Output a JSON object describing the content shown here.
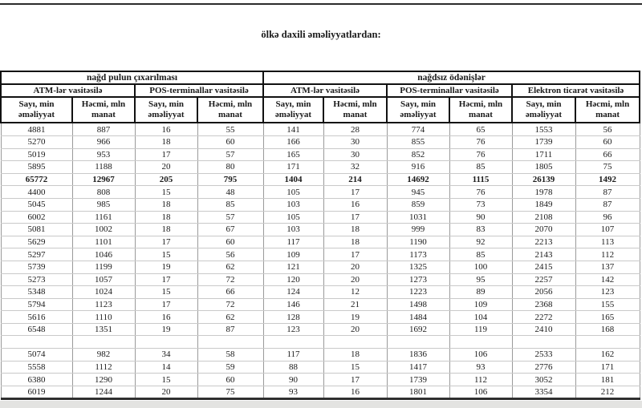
{
  "page": {
    "title": "ölkə daxili əməliyyatlardan:"
  },
  "table": {
    "groups": [
      {
        "label": "nağd pulun çıxarılması",
        "span": 4
      },
      {
        "label": "nağdsız ödənişlər",
        "span": 6
      }
    ],
    "subgroups": [
      {
        "label": "ATM-lər vasitəsilə",
        "span": 2
      },
      {
        "label": "POS-terminallar vasitəsilə",
        "span": 2
      },
      {
        "label": "ATM-lər vasitəsilə",
        "span": 2
      },
      {
        "label": "POS-terminallar vasitəsilə",
        "span": 2
      },
      {
        "label": "Elektron ticarət vasitəsilə",
        "span": 2
      }
    ],
    "header_cells": [
      "Sayı, min əməliyyat",
      "Həcmi, mln manat",
      "Sayı, min əməliyyat",
      "Həcmi, mln manat",
      "Sayı, min əməliyyat",
      "Həcmi, mln manat",
      "Sayı, min əməliyyat",
      "Həcmi, mln manat",
      "Sayı, min əməliyyat",
      "Həcmi, mln manat"
    ],
    "bold_row_index": 4,
    "rows": [
      [
        4881,
        887,
        16,
        55,
        141,
        28,
        774,
        65,
        1553,
        56
      ],
      [
        5270,
        966,
        18,
        60,
        166,
        30,
        855,
        76,
        1739,
        60
      ],
      [
        5019,
        953,
        17,
        57,
        165,
        30,
        852,
        76,
        1711,
        66
      ],
      [
        5895,
        1188,
        20,
        80,
        171,
        32,
        916,
        85,
        1805,
        75
      ],
      [
        65772,
        12967,
        205,
        795,
        1404,
        214,
        14692,
        1115,
        26139,
        1492
      ],
      [
        4400,
        808,
        15,
        48,
        105,
        17,
        945,
        76,
        1978,
        87
      ],
      [
        5045,
        985,
        18,
        85,
        103,
        16,
        859,
        73,
        1849,
        87
      ],
      [
        6002,
        1161,
        18,
        57,
        105,
        17,
        1031,
        90,
        2108,
        96
      ],
      [
        5081,
        1002,
        18,
        67,
        103,
        18,
        999,
        83,
        2070,
        107
      ],
      [
        5629,
        1101,
        17,
        60,
        117,
        18,
        1190,
        92,
        2213,
        113
      ],
      [
        5297,
        1046,
        15,
        56,
        109,
        17,
        1173,
        85,
        2143,
        112
      ],
      [
        5739,
        1199,
        19,
        62,
        121,
        20,
        1325,
        100,
        2415,
        137
      ],
      [
        5273,
        1057,
        17,
        72,
        120,
        20,
        1273,
        95,
        2257,
        142
      ],
      [
        5348,
        1024,
        15,
        66,
        124,
        12,
        1223,
        89,
        2056,
        123
      ],
      [
        5794,
        1123,
        17,
        72,
        146,
        21,
        1498,
        109,
        2368,
        155
      ],
      [
        5616,
        1110,
        16,
        62,
        128,
        19,
        1484,
        104,
        2272,
        165
      ],
      [
        6548,
        1351,
        19,
        87,
        123,
        20,
        1692,
        119,
        2410,
        168
      ],
      [
        "",
        "",
        "",
        "",
        "",
        "",
        "",
        "",
        "",
        ""
      ],
      [
        5074,
        982,
        34,
        58,
        117,
        18,
        1836,
        106,
        2533,
        162
      ],
      [
        5558,
        1112,
        14,
        59,
        88,
        15,
        1417,
        93,
        2776,
        171
      ],
      [
        6380,
        1290,
        15,
        60,
        90,
        17,
        1739,
        112,
        3052,
        181
      ],
      [
        6019,
        1244,
        20,
        75,
        93,
        16,
        1801,
        106,
        3354,
        212
      ]
    ]
  },
  "colors": {
    "text": "#1a1a1a",
    "header_border": "#111111",
    "grid_vertical": "#9a9a9a",
    "grid_horizontal": "#c9c9c9",
    "top_rule": "#2b2b2b",
    "bottom_rule": "#2f2f2f",
    "page_edge": "#e3e3e1"
  }
}
